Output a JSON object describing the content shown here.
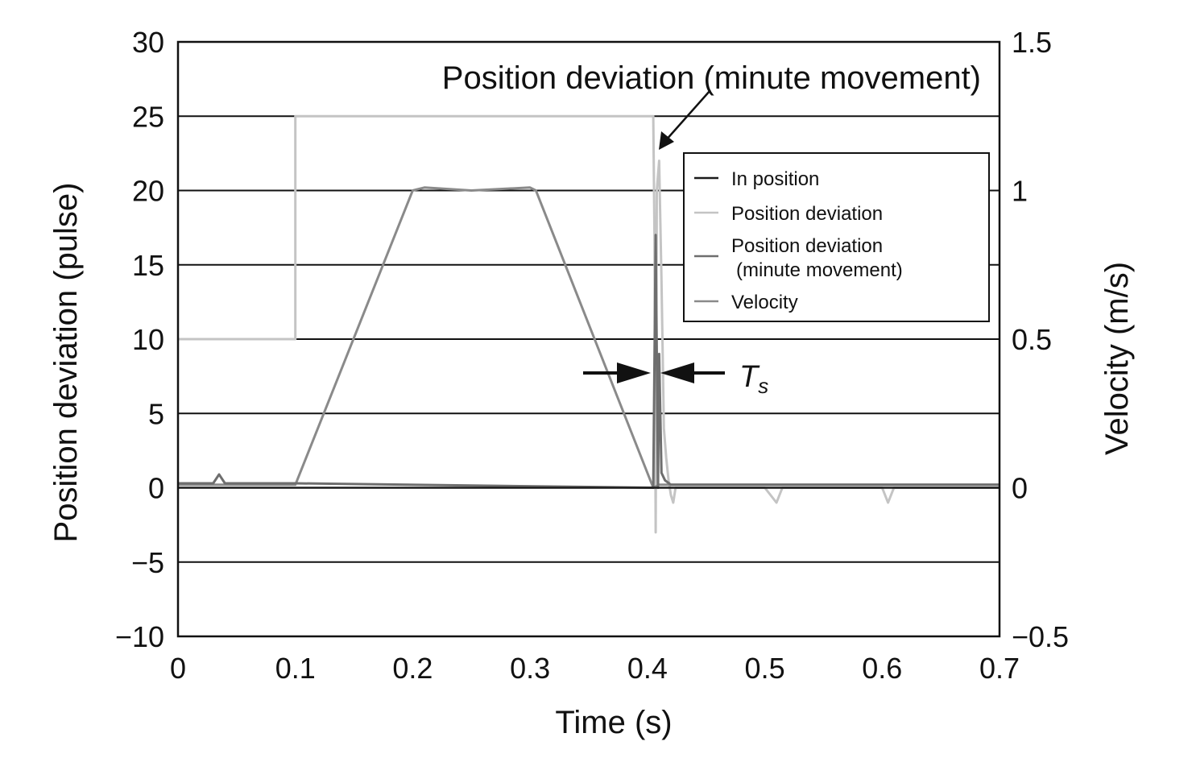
{
  "chart_data": {
    "type": "line",
    "title": "",
    "xlabel": "Time (s)",
    "ylabel": "Position deviation (pulse)",
    "y2label": "Velocity (m/s)",
    "xlim": [
      0,
      0.7
    ],
    "ylim": [
      -10,
      30
    ],
    "y2lim": [
      -0.5,
      1.5
    ],
    "x_ticks": [
      0,
      0.1,
      0.2,
      0.3,
      0.4,
      0.5,
      0.6,
      0.7
    ],
    "x_tick_labels": [
      "0",
      "0.1",
      "0.2",
      "0.3",
      "0.4",
      "0.5",
      "0.6",
      "0.7"
    ],
    "y_ticks": [
      30,
      25,
      20,
      15,
      10,
      5,
      0,
      -5,
      -10
    ],
    "y_tick_labels": [
      "30",
      "25",
      "20",
      "15",
      "10",
      "5",
      "0",
      "−5",
      "−10"
    ],
    "y2_ticks": [
      1.5,
      1,
      0.5,
      0,
      -0.5
    ],
    "y2_tick_labels": [
      "1.5",
      "1",
      "0.5",
      "0",
      "−0.5"
    ],
    "grid": "horizontal",
    "legend_position": "top-right",
    "series": [
      {
        "name": "In position",
        "axis": "left",
        "color": "#1a1a1a",
        "x": [
          0,
          0.7
        ],
        "y": [
          0,
          0
        ]
      },
      {
        "name": "Position deviation",
        "axis": "left",
        "color": "#c4c4c4",
        "x": [
          0,
          0.1,
          0.1,
          0.405,
          0.406,
          0.407,
          0.408,
          0.41,
          0.412,
          0.414,
          0.416,
          0.418,
          0.42,
          0.422,
          0.424,
          0.43,
          0.5,
          0.51,
          0.515,
          0.52,
          0.6,
          0.605,
          0.61,
          0.7
        ],
        "y": [
          10,
          10,
          25,
          25,
          17,
          -3,
          20,
          22,
          14,
          4,
          2,
          0.5,
          -0.5,
          -1,
          0,
          0,
          0,
          -1,
          0,
          0,
          0,
          -1,
          0,
          0
        ]
      },
      {
        "name": "Position deviation\n(minute movement)",
        "axis": "left",
        "color": "#6e6e6e",
        "x": [
          0,
          0.03,
          0.035,
          0.04,
          0.05,
          0.1,
          0.405,
          0.407,
          0.409,
          0.41,
          0.412,
          0.415,
          0.42,
          0.43,
          0.7
        ],
        "y": [
          0.3,
          0.3,
          0.9,
          0.3,
          0.3,
          0.3,
          0,
          17,
          0,
          9,
          1,
          0.5,
          0.2,
          0.2,
          0.2
        ]
      },
      {
        "name": "Velocity",
        "axis": "right",
        "color": "#8a8a8a",
        "x": [
          0,
          0.1,
          0.2,
          0.21,
          0.25,
          0.3,
          0.305,
          0.405,
          0.41,
          0.7
        ],
        "y": [
          0.01,
          0.01,
          1.0,
          1.01,
          1.0,
          1.01,
          1.0,
          0,
          0.01,
          0.01
        ]
      }
    ],
    "annotations": [
      {
        "text": "Position deviation (minute movement)",
        "x": 0.41,
        "y": 23
      },
      {
        "text": "T",
        "subscript": "s",
        "from_x": 0.405,
        "to_x": 0.41,
        "y": 7.5
      }
    ]
  }
}
